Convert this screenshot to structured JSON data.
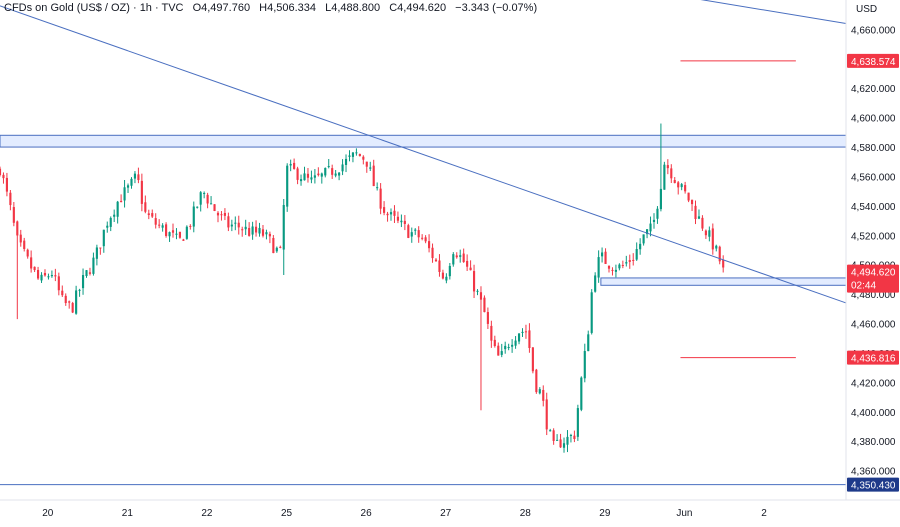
{
  "header": {
    "symbol": "CFDs on Gold (US$ / OZ) · 1h · TVC",
    "open": "O4,497.760",
    "high": "H4,506.334",
    "low": "L4,488.800",
    "close": "C4,494.620",
    "change": "−3.343 (−0.07%)"
  },
  "chart_data": {
    "type": "candlestick",
    "currency_label": "USD",
    "ylim": [
      4340,
      4680
    ],
    "y_ticks": [
      4360,
      4380,
      4400,
      4420,
      4440,
      4460,
      4480,
      4500,
      4520,
      4540,
      4560,
      4580,
      4600,
      4620,
      4640,
      4660
    ],
    "y_tick_labels": [
      "4,360.000",
      "4,380.000",
      "4,400.000",
      "4,420.000",
      "4,440.000",
      "4,460.000",
      "4,480.000",
      "4,500.000",
      "4,520.000",
      "4,540.000",
      "4,560.000",
      "4,580.000",
      "4,600.000",
      "4,620.000",
      "4,640.000",
      "4,660.000"
    ],
    "x_labels": [
      {
        "label": "20",
        "t": 0.6
      },
      {
        "label": "21",
        "t": 1.6
      },
      {
        "label": "22",
        "t": 2.6
      },
      {
        "label": "25",
        "t": 3.6
      },
      {
        "label": "26",
        "t": 4.6
      },
      {
        "label": "27",
        "t": 5.6
      },
      {
        "label": "28",
        "t": 6.6
      },
      {
        "label": "29",
        "t": 7.6
      },
      {
        "label": "Jun",
        "t": 8.6
      },
      {
        "label": "2",
        "t": 9.6
      }
    ],
    "t_range": [
      0,
      10.63
    ],
    "candles_per_day": 23,
    "price_path": [
      [
        0.0,
        4566
      ],
      [
        0.12,
        4540
      ],
      [
        0.22,
        4515
      ],
      [
        0.35,
        4502
      ],
      [
        0.5,
        4488
      ],
      [
        0.65,
        4495
      ],
      [
        0.78,
        4475
      ],
      [
        0.9,
        4470
      ],
      [
        1.05,
        4490
      ],
      [
        1.2,
        4505
      ],
      [
        1.35,
        4530
      ],
      [
        1.5,
        4545
      ],
      [
        1.62,
        4552
      ],
      [
        1.72,
        4560
      ],
      [
        1.82,
        4535
      ],
      [
        1.95,
        4528
      ],
      [
        2.1,
        4522
      ],
      [
        2.25,
        4515
      ],
      [
        2.4,
        4530
      ],
      [
        2.55,
        4550
      ],
      [
        2.7,
        4537
      ],
      [
        2.85,
        4527
      ],
      [
        3.0,
        4526
      ],
      [
        3.15,
        4522
      ],
      [
        3.3,
        4521
      ],
      [
        3.45,
        4512
      ],
      [
        3.52,
        4506
      ],
      [
        3.6,
        4565
      ],
      [
        3.75,
        4562
      ],
      [
        3.9,
        4556
      ],
      [
        4.05,
        4560
      ],
      [
        4.2,
        4565
      ],
      [
        4.35,
        4570
      ],
      [
        4.48,
        4575
      ],
      [
        4.6,
        4572
      ],
      [
        4.72,
        4550
      ],
      [
        4.85,
        4535
      ],
      [
        5.0,
        4528
      ],
      [
        5.15,
        4522
      ],
      [
        5.3,
        4518
      ],
      [
        5.45,
        4505
      ],
      [
        5.58,
        4490
      ],
      [
        5.7,
        4512
      ],
      [
        5.85,
        4500
      ],
      [
        6.0,
        4480
      ],
      [
        6.1,
        4465
      ],
      [
        6.18,
        4445
      ],
      [
        6.28,
        4435
      ],
      [
        6.4,
        4448
      ],
      [
        6.52,
        4455
      ],
      [
        6.62,
        4455
      ],
      [
        6.72,
        4420
      ],
      [
        6.8,
        4412
      ],
      [
        6.88,
        4390
      ],
      [
        6.95,
        4375
      ],
      [
        7.05,
        4380
      ],
      [
        7.15,
        4382
      ],
      [
        7.22,
        4385
      ],
      [
        7.3,
        4420
      ],
      [
        7.38,
        4450
      ],
      [
        7.46,
        4495
      ],
      [
        7.55,
        4505
      ],
      [
        7.68,
        4500
      ],
      [
        7.8,
        4498
      ],
      [
        7.95,
        4505
      ],
      [
        8.1,
        4520
      ],
      [
        8.2,
        4525
      ],
      [
        8.28,
        4548
      ],
      [
        8.35,
        4570
      ],
      [
        8.45,
        4562
      ],
      [
        8.55,
        4552
      ],
      [
        8.65,
        4545
      ],
      [
        8.75,
        4534
      ],
      [
        8.85,
        4525
      ],
      [
        8.95,
        4515
      ],
      [
        9.05,
        4502
      ],
      [
        9.12,
        4494.62
      ]
    ],
    "spikes": [
      {
        "t": 8.32,
        "high": 4596
      },
      {
        "t": 1.75,
        "high": 4566
      },
      {
        "t": 3.58,
        "low": 4493
      },
      {
        "t": 6.04,
        "low": 4401
      },
      {
        "t": 0.22,
        "low": 4463
      }
    ],
    "zones": [
      {
        "y_from": 4580,
        "y_to": 4588,
        "t_from": 0,
        "t_to": 10.63
      },
      {
        "y_from": 4486,
        "y_to": 4491,
        "t_from": 7.55,
        "t_to": 10.63
      }
    ],
    "trendlines": [
      {
        "from": [
          0.0,
          4676
        ],
        "to": [
          10.63,
          4474
        ]
      },
      {
        "from": [
          7.72,
          4690
        ],
        "to": [
          10.63,
          4664
        ]
      }
    ],
    "horizontal_levels": [
      {
        "value": 4638.574,
        "label": "4,638.574",
        "t_from": 8.55,
        "t_to": 10.0
      },
      {
        "value": 4436.816,
        "label": "4,436.816",
        "t_from": 8.55,
        "t_to": 10.0
      },
      {
        "value": 4350.43,
        "label": "4,350.430",
        "t_from": 0,
        "t_to": 10.63
      }
    ],
    "current_price": {
      "value": 4494.62,
      "label": "4,494.620",
      "countdown": "02:44"
    },
    "colors": {
      "up": "#089981",
      "down": "#f23645",
      "trendline": "#4a6fc0",
      "zone_fill": "#e3ecff",
      "zone_stroke": "#4a6fc0",
      "level_line": "#f23645",
      "level_label_bg": "#f23645",
      "bottom_level": "#4a6fc0",
      "bottom_label_bg": "#1e3a8a",
      "axis_text": "#131722"
    }
  }
}
